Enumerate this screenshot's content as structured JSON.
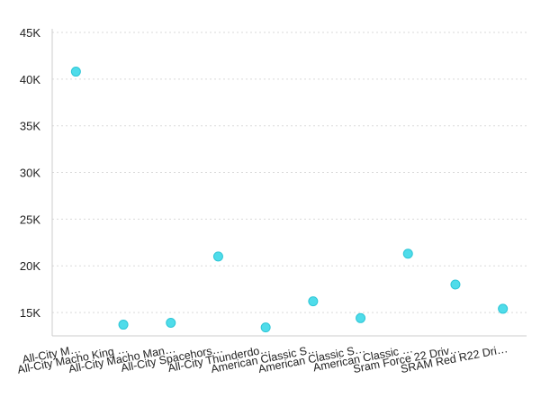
{
  "chart_data": {
    "type": "scatter",
    "title": "",
    "xlabel": "",
    "ylabel": "",
    "ylim": [
      12500,
      45000
    ],
    "y_ticks": [
      15000,
      20000,
      25000,
      30000,
      35000,
      40000,
      45000
    ],
    "y_tick_labels": [
      "15K",
      "20K",
      "25K",
      "30K",
      "35K",
      "40K",
      "45K"
    ],
    "grid": "horizontal dotted",
    "categories": [
      "All-City M…",
      "All-City Macho King …",
      "All-City Macho Man…",
      "All-City Spacehors…",
      "All-City Thunderdo…",
      "American Classic S…",
      "American Classic S…",
      "American Classic …",
      "Sram Force 22 Driv…",
      "SRAM Red R22 Dri…"
    ],
    "series": [
      {
        "values": [
          40800,
          13700,
          13900,
          21000,
          13400,
          16200,
          14400,
          21300,
          18000,
          15400
        ]
      }
    ],
    "colors": {
      "point_fill": "#4fdcea",
      "point_stroke": "#2ec6d6",
      "axis": "#cccccc",
      "grid": "#d9d9d9"
    }
  }
}
